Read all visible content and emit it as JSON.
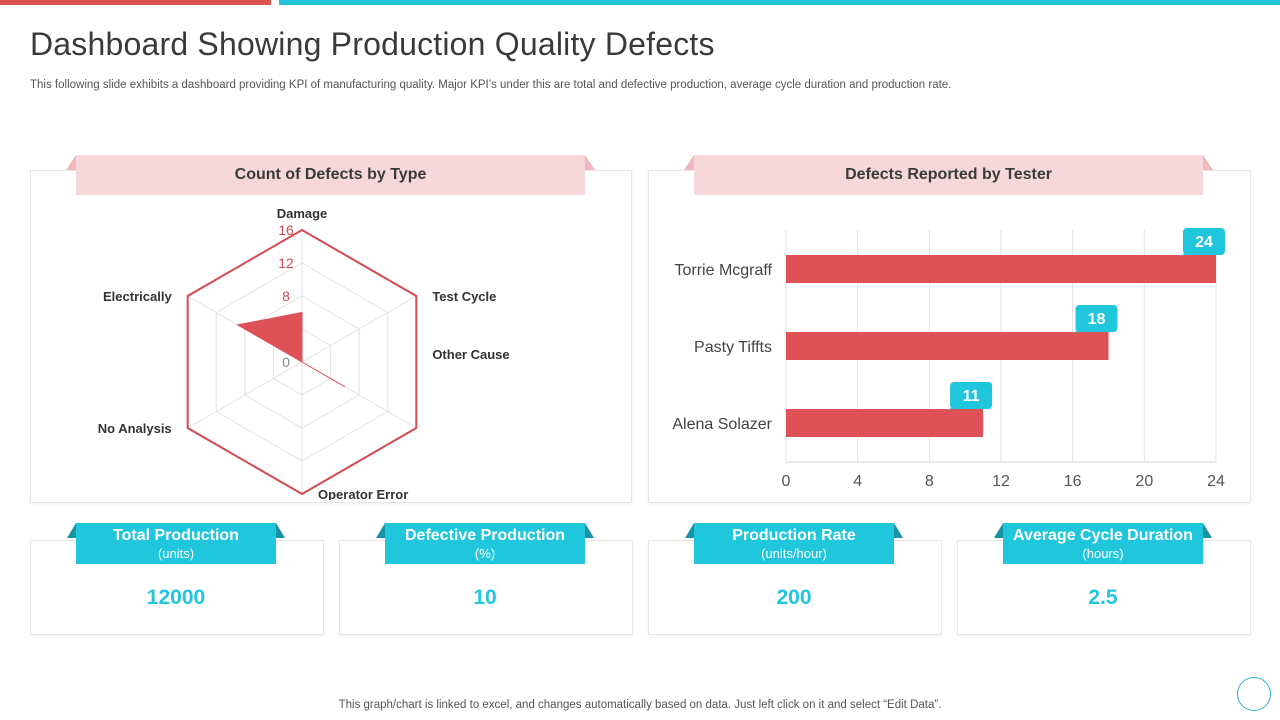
{
  "header": {
    "title": "Dashboard Showing Production Quality Defects",
    "subtitle": "This following slide exhibits a dashboard providing KPI of manufacturing quality. Major KPI’s under this are total and defective production, average cycle duration and production rate."
  },
  "radar_panel": {
    "title": "Count of Defects by Type"
  },
  "bar_panel": {
    "title": "Defects Reported by Tester"
  },
  "chart_data": [
    {
      "type": "radar",
      "title": "Count of Defects by Type",
      "axes": [
        "Damage",
        "Test Cycle",
        "Other Cause",
        "Operator Error",
        "No Analysis",
        "Electrically"
      ],
      "ticks": [
        0,
        8,
        12,
        16
      ],
      "tick_labels": [
        "0",
        "8",
        "12",
        "16"
      ],
      "range": [
        0,
        16
      ],
      "values": [
        6,
        0,
        6,
        0,
        0,
        9
      ],
      "series_color": "#de5157"
    },
    {
      "type": "bar",
      "orientation": "horizontal",
      "title": "Defects Reported by Tester",
      "categories": [
        "Torrie Mcgraff",
        "Pasty Tiffts",
        "Alena  Solazer"
      ],
      "values": [
        24,
        18,
        11
      ],
      "data_labels": [
        "24",
        "18",
        "11"
      ],
      "xlim": [
        0,
        24
      ],
      "xticks": [
        0,
        4,
        8,
        12,
        16,
        20,
        24
      ],
      "xtick_labels": [
        "0",
        "4",
        "8",
        "12",
        "16",
        "20",
        "24"
      ],
      "bar_color": "#de5157",
      "label_color": "#1fc6dc"
    }
  ],
  "kpis": [
    {
      "label": "Total Production",
      "unit": "(units)",
      "value": "12000"
    },
    {
      "label": "Defective Production",
      "unit": "(%)",
      "value": "10"
    },
    {
      "label": "Production Rate",
      "unit": "(units/hour)",
      "value": "200"
    },
    {
      "label": "Average Cycle Duration",
      "unit": "(hours)",
      "value": "2.5"
    }
  ],
  "footer": {
    "note": "This graph/chart is linked to excel,  and changes automatically based on data. Just left click on it and select “Edit Data”."
  },
  "colors": {
    "accent_red": "#de5157",
    "accent_teal": "#1fc6dc",
    "ribbon_pink": "#f6d8da"
  }
}
